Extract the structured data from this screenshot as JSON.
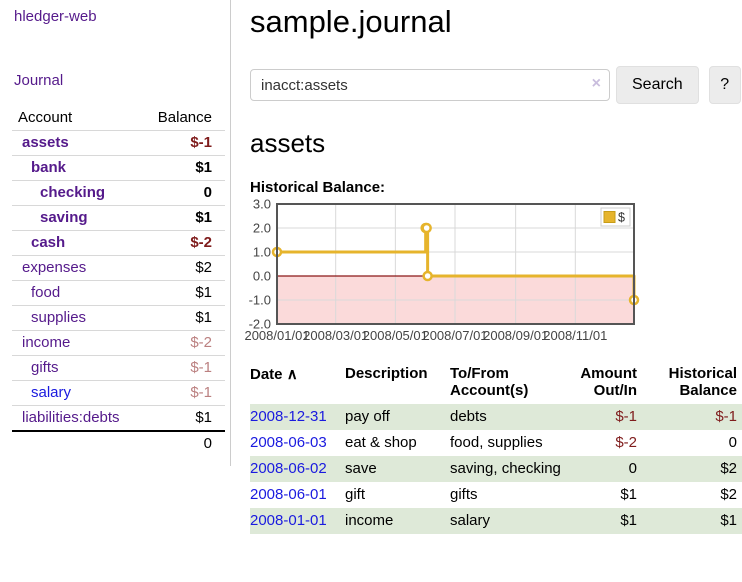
{
  "sidebar": {
    "app_title": "hledger-web",
    "nav": {
      "journal_label": "Journal"
    },
    "accounts_table": {
      "col_account": "Account",
      "col_balance": "Balance",
      "rows": [
        {
          "name": "assets",
          "balance": "$-1",
          "depth": 1,
          "bold": true,
          "negative": true
        },
        {
          "name": "bank",
          "balance": "$1",
          "depth": 2,
          "bold": true,
          "negative": false
        },
        {
          "name": "checking",
          "balance": "0",
          "depth": 3,
          "bold": true,
          "negative": false
        },
        {
          "name": "saving",
          "balance": "$1",
          "depth": 3,
          "bold": true,
          "negative": false
        },
        {
          "name": "cash",
          "balance": "$-2",
          "depth": 2,
          "bold": true,
          "negative": true
        },
        {
          "name": "expenses",
          "balance": "$2",
          "depth": 1,
          "bold": false,
          "negative": false
        },
        {
          "name": "food",
          "balance": "$1",
          "depth": 2,
          "bold": false,
          "negative": false
        },
        {
          "name": "supplies",
          "balance": "$1",
          "depth": 2,
          "bold": false,
          "negative": false
        },
        {
          "name": "income",
          "balance": "$-2",
          "depth": 1,
          "bold": false,
          "negative": true
        },
        {
          "name": "gifts",
          "balance": "$-1",
          "depth": 2,
          "bold": false,
          "negative": true
        },
        {
          "name": "salary",
          "balance": "$-1",
          "depth": 2,
          "bold": false,
          "negative": true
        },
        {
          "name": "liabilities:debts",
          "balance": "$1",
          "depth": 1,
          "bold": false,
          "negative": false
        }
      ],
      "total": "0"
    }
  },
  "main": {
    "title": "sample.journal",
    "search": {
      "value": "inacct:assets",
      "clear_icon": "×",
      "button_label": "Search",
      "help_label": "?"
    },
    "account_heading": "assets",
    "chart_heading": "Historical Balance:"
  },
  "chart_data": {
    "type": "line",
    "title": "Historical Balance of assets",
    "x_domain_days": [
      0,
      365
    ],
    "ylim": [
      -2,
      3
    ],
    "grid": true,
    "legend_position": "top-right",
    "legend": {
      "label": "$",
      "swatch": "#e6b42c"
    },
    "negative_fill": "#fbdada",
    "zero_line_color": "#8b1717",
    "x_ticks": [
      {
        "day": 0,
        "label": "2008/01/01"
      },
      {
        "day": 60,
        "label": "2008/03/01"
      },
      {
        "day": 121,
        "label": "2008/05/01"
      },
      {
        "day": 182,
        "label": "2008/07/01"
      },
      {
        "day": 244,
        "label": "2008/09/01"
      },
      {
        "day": 305,
        "label": "2008/11/01"
      }
    ],
    "y_ticks": [
      {
        "value": 3,
        "label": "3.0"
      },
      {
        "value": 2,
        "label": "2.0"
      },
      {
        "value": 1,
        "label": "1.0"
      },
      {
        "value": 0,
        "label": "0.0"
      },
      {
        "value": -1,
        "label": "-1.0"
      },
      {
        "value": -2,
        "label": "-2.0"
      }
    ],
    "series": [
      {
        "name": "$",
        "color": "#e6b42c",
        "step": true,
        "points": [
          {
            "date": "2008-01-01",
            "day": 0,
            "value": 1
          },
          {
            "date": "2008-06-01",
            "day": 152,
            "value": 2
          },
          {
            "date": "2008-06-02",
            "day": 153,
            "value": 2
          },
          {
            "date": "2008-06-03",
            "day": 154,
            "value": 0
          },
          {
            "date": "2008-12-31",
            "day": 365,
            "value": -1
          }
        ]
      }
    ]
  },
  "register_table": {
    "headers": {
      "date": "Date",
      "sort_icon": "∧",
      "description": "Description",
      "tofrom": "To/From Account(s)",
      "amount": "Amount Out/In",
      "balance": "Historical Balance"
    },
    "rows": [
      {
        "date": "2008-12-31",
        "description": "pay off",
        "accounts": "debts",
        "amount": "$-1",
        "balance": "$-1",
        "amount_negative": true,
        "balance_negative": true,
        "shaded": true
      },
      {
        "date": "2008-06-03",
        "description": "eat & shop",
        "accounts": "food, supplies",
        "amount": "$-2",
        "balance": "0",
        "amount_negative": true,
        "balance_negative": false,
        "shaded": false
      },
      {
        "date": "2008-06-02",
        "description": "save",
        "accounts": "saving, checking",
        "amount": "0",
        "balance": "$2",
        "amount_negative": false,
        "balance_negative": false,
        "shaded": true
      },
      {
        "date": "2008-06-01",
        "description": "gift",
        "accounts": "gifts",
        "amount": "$1",
        "balance": "$2",
        "amount_negative": false,
        "balance_negative": false,
        "shaded": false
      },
      {
        "date": "2008-01-01",
        "description": "income",
        "accounts": "salary",
        "amount": "$1",
        "balance": "$1",
        "amount_negative": false,
        "balance_negative": false,
        "shaded": true
      }
    ]
  }
}
